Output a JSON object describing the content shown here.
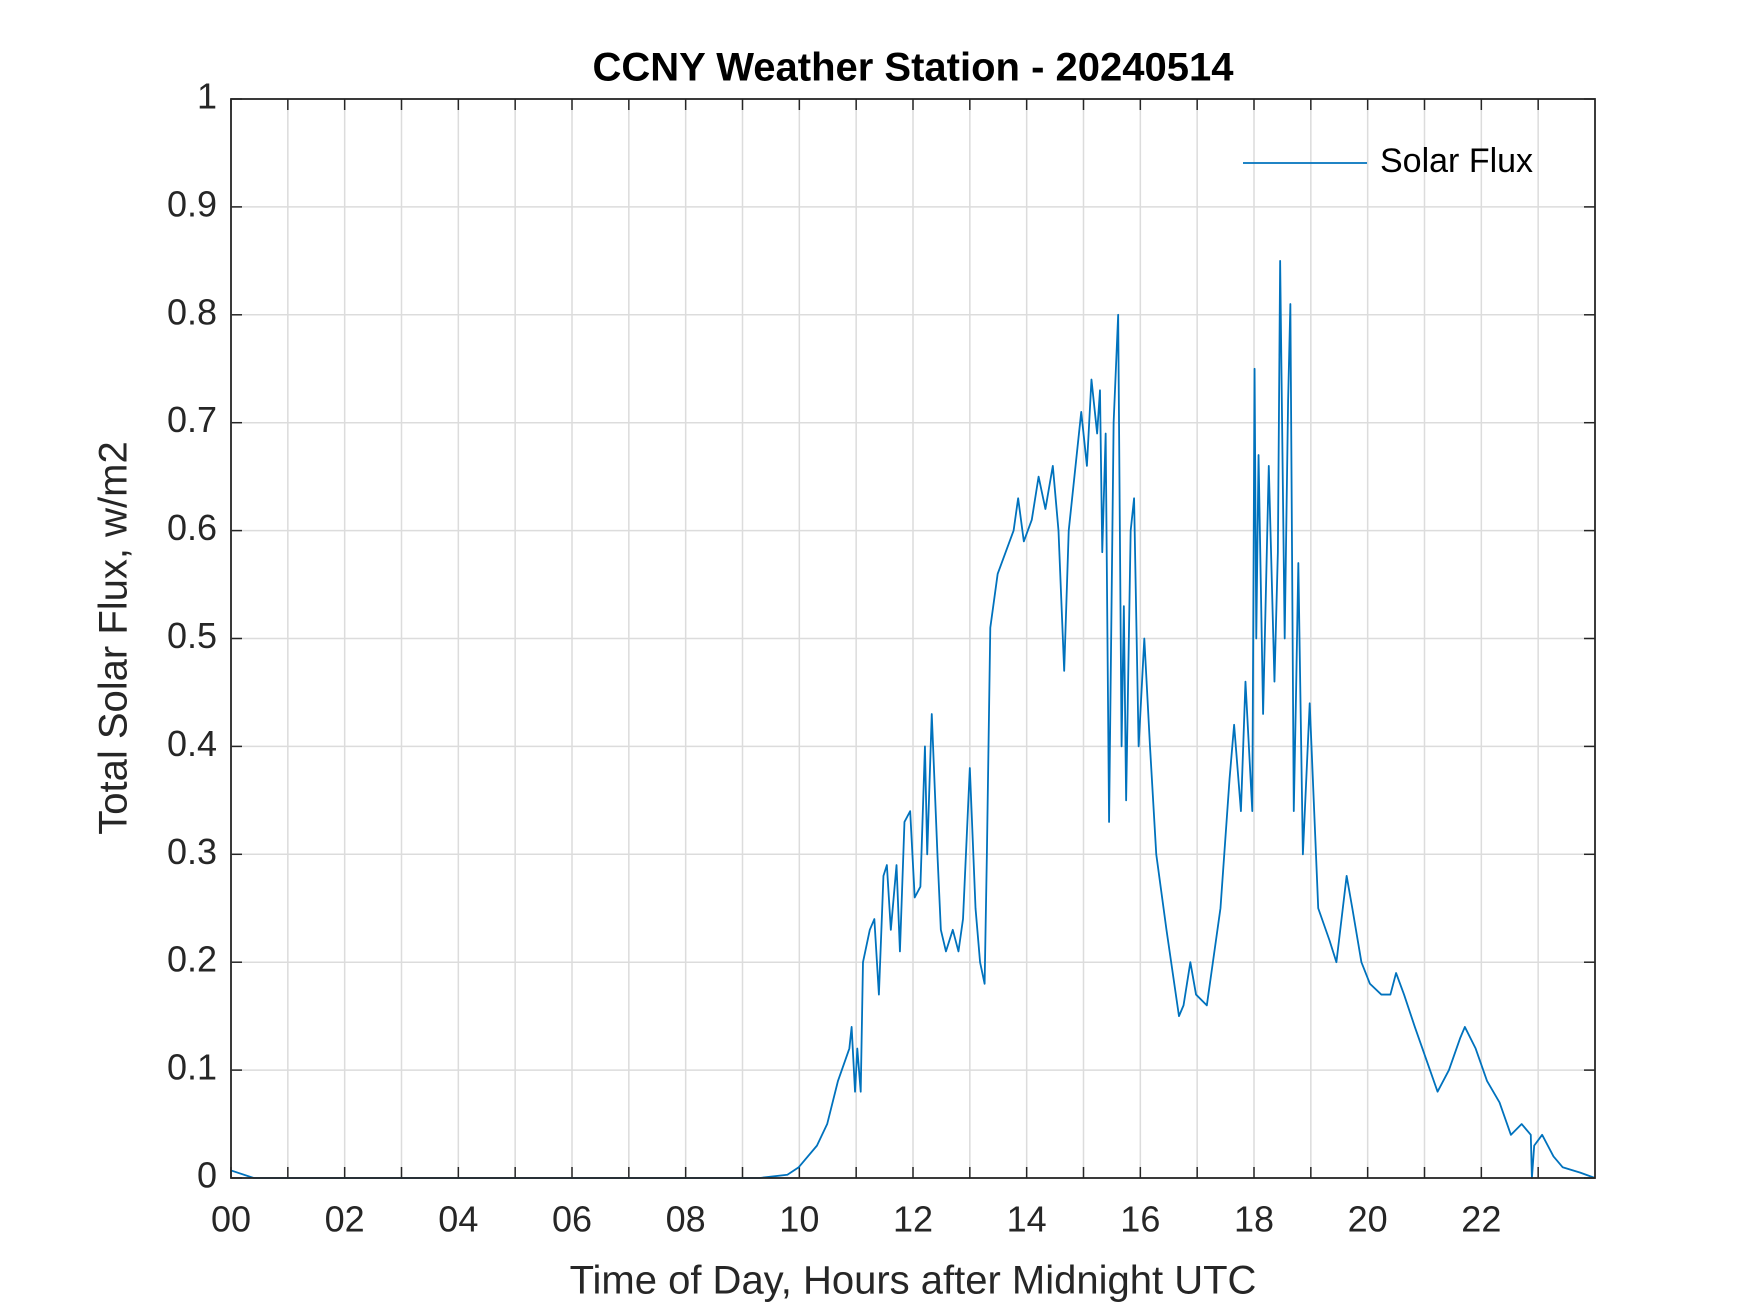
{
  "chart_data": {
    "type": "line",
    "title": "CCNY Weather Station - 20240514",
    "x_label": "Time of Day, Hours after Midnight UTC",
    "y_label": "Total Solar Flux, w/m2",
    "xlim": [
      0,
      24
    ],
    "ylim": [
      0,
      1
    ],
    "xticks": [
      {
        "value": 0,
        "label": "00"
      },
      {
        "value": 2,
        "label": "02"
      },
      {
        "value": 4,
        "label": "04"
      },
      {
        "value": 6,
        "label": "06"
      },
      {
        "value": 8,
        "label": "08"
      },
      10,
      12,
      14,
      16,
      18,
      20,
      22
    ],
    "xminorticks": [
      1,
      3,
      5,
      7,
      9,
      11,
      13,
      15,
      17,
      19,
      21,
      23
    ],
    "yticks": [
      0,
      0.1,
      0.2,
      0.3,
      0.4,
      0.5,
      0.6,
      0.7,
      0.8,
      0.9,
      1
    ],
    "grid": true,
    "legend": "northeast",
    "series": [
      {
        "name": "Solar Flux",
        "color": "#0072bd",
        "x": [
          0,
          0.4,
          9.3,
          9.79,
          9.99,
          10.31,
          10.49,
          10.68,
          10.88,
          10.92,
          10.98,
          11.02,
          11.08,
          11.12,
          11.24,
          11.32,
          11.4,
          11.48,
          11.54,
          11.61,
          11.71,
          11.77,
          11.85,
          11.95,
          12.03,
          12.13,
          12.21,
          12.25,
          12.33,
          12.43,
          12.49,
          12.58,
          12.7,
          12.8,
          12.88,
          13.0,
          13.1,
          13.18,
          13.26,
          13.3,
          13.36,
          13.49,
          13.63,
          13.77,
          13.85,
          13.95,
          14.09,
          14.21,
          14.33,
          14.46,
          14.56,
          14.66,
          14.74,
          14.84,
          14.96,
          15.06,
          15.14,
          15.24,
          15.29,
          15.33,
          15.39,
          15.45,
          15.53,
          15.61,
          15.67,
          15.71,
          15.75,
          15.83,
          15.89,
          15.97,
          16.07,
          16.17,
          16.28,
          16.46,
          16.68,
          16.76,
          16.88,
          16.98,
          17.17,
          17.41,
          17.57,
          17.65,
          17.77,
          17.85,
          17.97,
          18.01,
          18.04,
          18.08,
          18.16,
          18.26,
          18.36,
          18.42,
          18.46,
          18.54,
          18.6,
          18.64,
          18.7,
          18.74,
          18.78,
          18.86,
          18.98,
          19.13,
          19.33,
          19.45,
          19.63,
          19.73,
          19.89,
          20.04,
          20.24,
          20.4,
          20.5,
          20.64,
          20.83,
          21.03,
          21.23,
          21.43,
          21.63,
          21.71,
          21.9,
          22.1,
          22.32,
          22.52,
          22.71,
          22.87,
          22.89,
          22.93,
          23.07,
          23.27,
          23.43,
          23.74,
          24.0
        ],
        "values": [
          0.007,
          0,
          0,
          0.003,
          0.01,
          0.03,
          0.05,
          0.09,
          0.12,
          0.14,
          0.08,
          0.12,
          0.08,
          0.2,
          0.23,
          0.24,
          0.17,
          0.28,
          0.29,
          0.23,
          0.29,
          0.21,
          0.33,
          0.34,
          0.26,
          0.27,
          0.4,
          0.3,
          0.43,
          0.3,
          0.23,
          0.21,
          0.23,
          0.21,
          0.24,
          0.38,
          0.25,
          0.2,
          0.18,
          0.3,
          0.51,
          0.56,
          0.58,
          0.6,
          0.63,
          0.59,
          0.61,
          0.65,
          0.62,
          0.66,
          0.6,
          0.47,
          0.6,
          0.65,
          0.71,
          0.66,
          0.74,
          0.69,
          0.73,
          0.58,
          0.69,
          0.33,
          0.7,
          0.8,
          0.4,
          0.53,
          0.35,
          0.6,
          0.63,
          0.4,
          0.5,
          0.4,
          0.3,
          0.23,
          0.15,
          0.16,
          0.2,
          0.17,
          0.16,
          0.25,
          0.37,
          0.42,
          0.34,
          0.46,
          0.34,
          0.75,
          0.5,
          0.67,
          0.43,
          0.66,
          0.46,
          0.58,
          0.85,
          0.5,
          0.72,
          0.81,
          0.34,
          0.45,
          0.57,
          0.3,
          0.44,
          0.25,
          0.22,
          0.2,
          0.28,
          0.25,
          0.2,
          0.18,
          0.17,
          0.17,
          0.19,
          0.17,
          0.14,
          0.11,
          0.08,
          0.1,
          0.13,
          0.14,
          0.12,
          0.09,
          0.07,
          0.04,
          0.05,
          0.04,
          0,
          0.03,
          0.04,
          0.02,
          0.01,
          0.005,
          0
        ]
      }
    ]
  }
}
